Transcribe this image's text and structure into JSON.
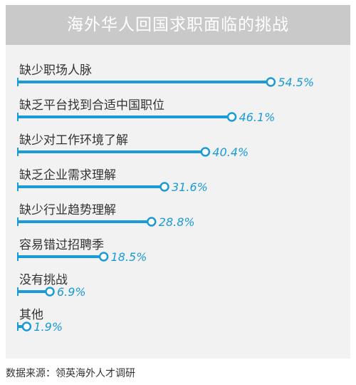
{
  "source_text": "数据来源：领英海外人才调研",
  "colors": {
    "bar": "#1a9ad6",
    "header_bg": "#c9c9c9",
    "panel_bg": "#f2f2f2"
  },
  "chart_data": {
    "type": "bar",
    "orientation": "horizontal",
    "title": "海外华人回国求职面临的挑战",
    "value_suffix": "%",
    "categories": [
      "缺少职场人脉",
      "缺乏平台找到合适中国职位",
      "缺少对工作环境了解",
      "缺乏企业需求理解",
      "缺少行业趋势理解",
      "容易错过招聘季",
      "没有挑战",
      "其他"
    ],
    "values": [
      54.5,
      46.1,
      40.4,
      31.6,
      28.8,
      18.5,
      6.9,
      1.9
    ],
    "xlim": [
      0,
      60
    ]
  }
}
